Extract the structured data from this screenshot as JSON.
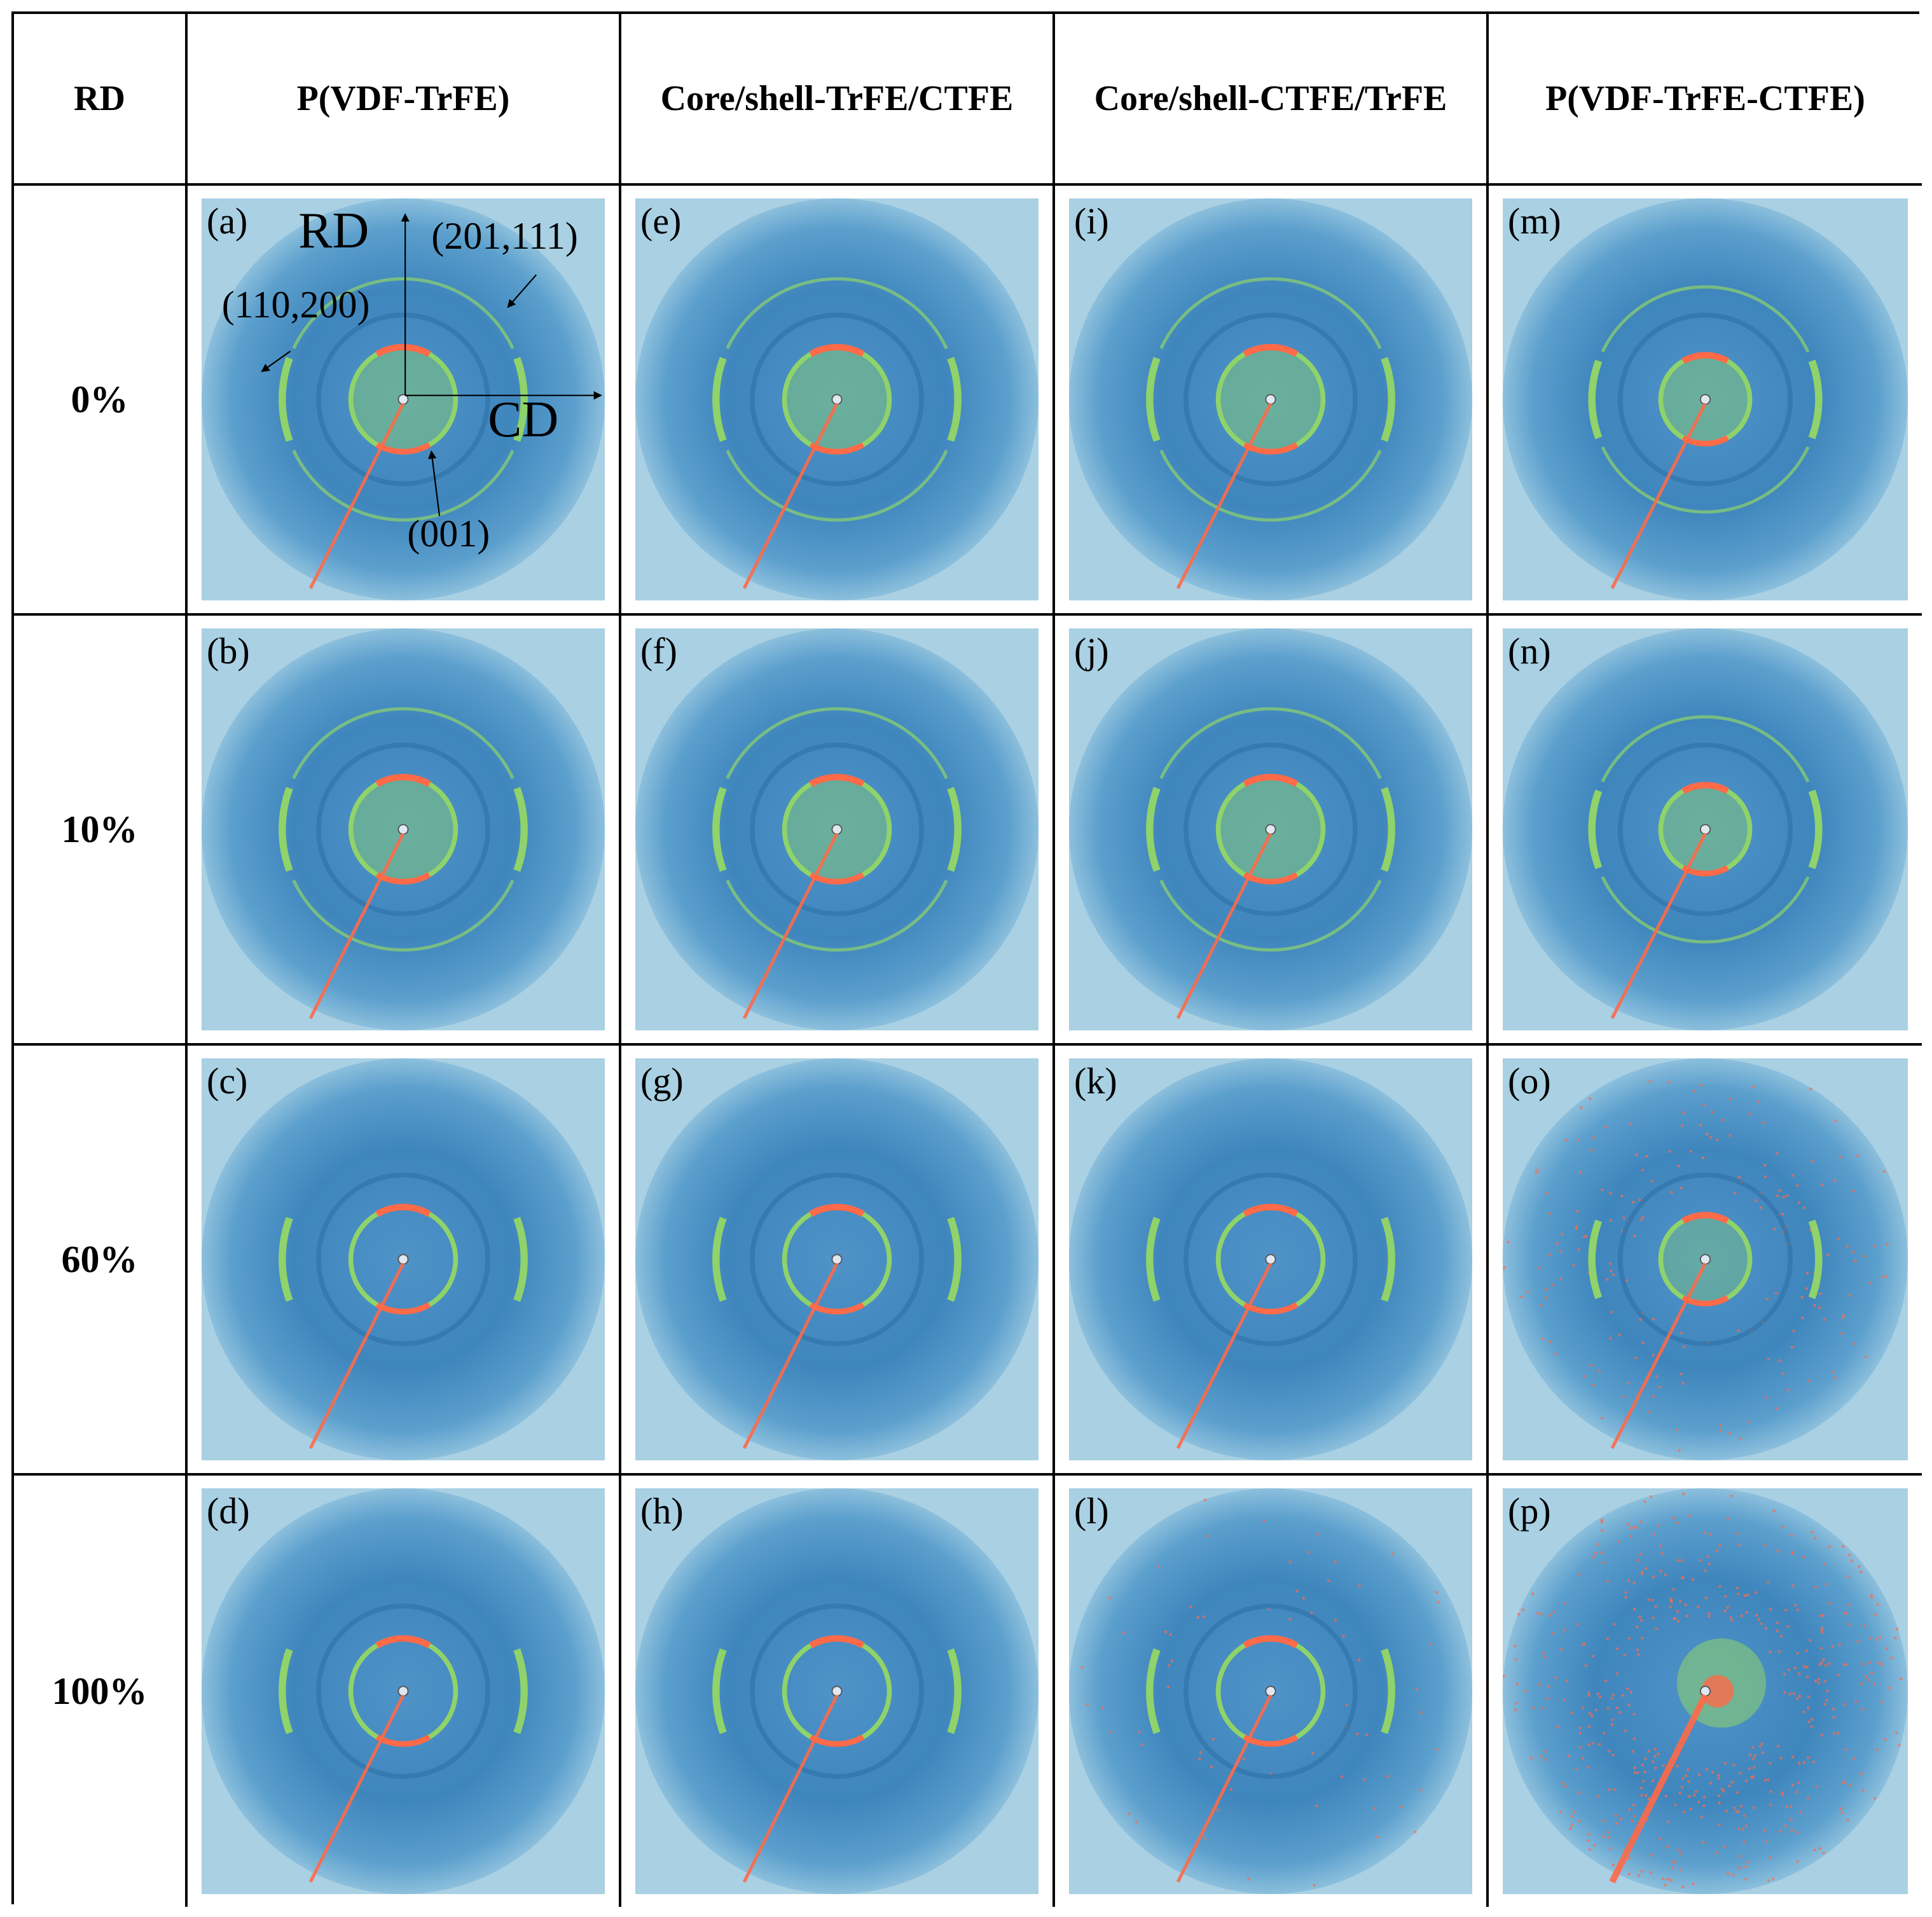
{
  "header": {
    "corner": "RD",
    "columns": [
      "P(VDF-TrFE)",
      "Core/shell-TrFE/CTFE",
      "Core/shell-CTFE/TrFE",
      "P(VDF-TrFE-CTFE)"
    ]
  },
  "rows": [
    "0%",
    "10%",
    "60%",
    "100%"
  ],
  "panel_labels": [
    [
      "(a)",
      "(e)",
      "(i)",
      "(m)"
    ],
    [
      "(b)",
      "(f)",
      "(j)",
      "(n)"
    ],
    [
      "(c)",
      "(g)",
      "(k)",
      "(o)"
    ],
    [
      "(d)",
      "(h)",
      "(l)",
      "(p)"
    ]
  ],
  "annotations": {
    "rd_axis": "RD",
    "cd_axis": "CD",
    "peak_201_111": "(201,111)",
    "peak_110_200": "(110,200)",
    "peak_001": "(001)"
  },
  "colors": {
    "background": "#a9d0e3",
    "halo": "#3f86bd",
    "ring_green": "#8fd36a",
    "arc_red": "#ff6a48"
  }
}
